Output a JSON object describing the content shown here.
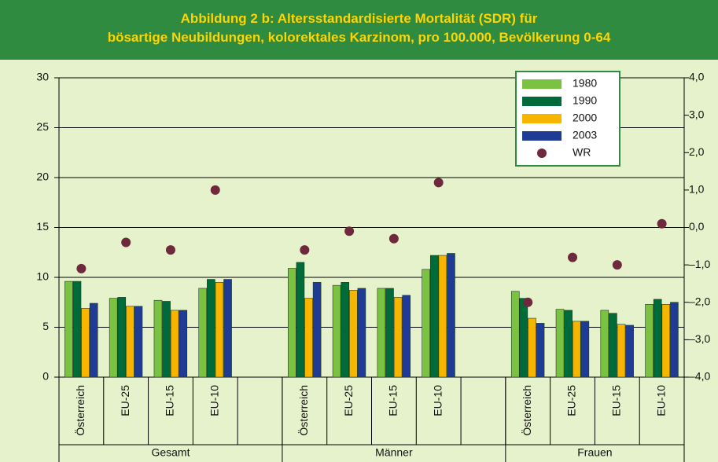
{
  "chart_data": {
    "type": "bar",
    "title": "Abbildung 2 b: Altersstandardisierte Mortalität (SDR) für\nbösartige Neubildungen, kolorektales Karzinom, pro 100.000, Bevölkerung 0-64",
    "categories": [
      "Österreich",
      "EU-25",
      "EU-15",
      "EU-10",
      null,
      "Österreich",
      "EU-25",
      "EU-15",
      "EU-10",
      null,
      "Österreich",
      "EU-25",
      "EU-15",
      "EU-10"
    ],
    "groups": [
      "Gesamt",
      "Männer",
      "Frauen"
    ],
    "group_sizes": [
      5,
      5,
      4
    ],
    "series": [
      {
        "name": "1980",
        "color": "#7cc242",
        "values": [
          9.6,
          7.9,
          7.7,
          8.9,
          null,
          10.9,
          9.2,
          8.9,
          10.8,
          null,
          8.6,
          6.8,
          6.7,
          7.3
        ]
      },
      {
        "name": "1990",
        "color": "#006b3a",
        "values": [
          9.6,
          8.0,
          7.6,
          9.8,
          null,
          11.5,
          9.5,
          8.9,
          12.2,
          null,
          7.9,
          6.7,
          6.4,
          7.8
        ]
      },
      {
        "name": "2000",
        "color": "#f7b500",
        "values": [
          6.9,
          7.1,
          6.7,
          9.5,
          null,
          7.9,
          8.7,
          8.0,
          12.2,
          null,
          5.9,
          5.6,
          5.3,
          7.3
        ]
      },
      {
        "name": "2003",
        "color": "#1f3b96",
        "values": [
          7.4,
          7.1,
          6.7,
          9.8,
          null,
          9.5,
          8.9,
          8.2,
          12.4,
          null,
          5.4,
          5.6,
          5.2,
          7.5
        ]
      },
      {
        "name": "WR",
        "color": "#6e2a3c",
        "type": "scatter",
        "axis": "y2",
        "values": [
          -1.1,
          -0.4,
          -0.6,
          1.0,
          null,
          -0.6,
          -0.1,
          -0.3,
          1.2,
          null,
          -2.0,
          -0.8,
          -1.0,
          0.1
        ]
      }
    ],
    "ylim": [
      0,
      30
    ],
    "yticks": [
      0,
      5,
      10,
      15,
      20,
      25,
      30
    ],
    "y2lim": [
      -4,
      4
    ],
    "y2ticks": [
      {
        "value": 4,
        "label": "4,0"
      },
      {
        "value": 3,
        "label": "3,0"
      },
      {
        "value": 2,
        "label": "2,0"
      },
      {
        "value": 1,
        "label": "1,0"
      },
      {
        "value": 0,
        "label": "0,0"
      },
      {
        "value": -1,
        "label": "–1,0"
      },
      {
        "value": -2,
        "label": "–2,0"
      },
      {
        "value": -3,
        "label": "–3,0"
      },
      {
        "value": -4,
        "label": "–4,0"
      }
    ],
    "grid": true,
    "legend": "upper right"
  }
}
